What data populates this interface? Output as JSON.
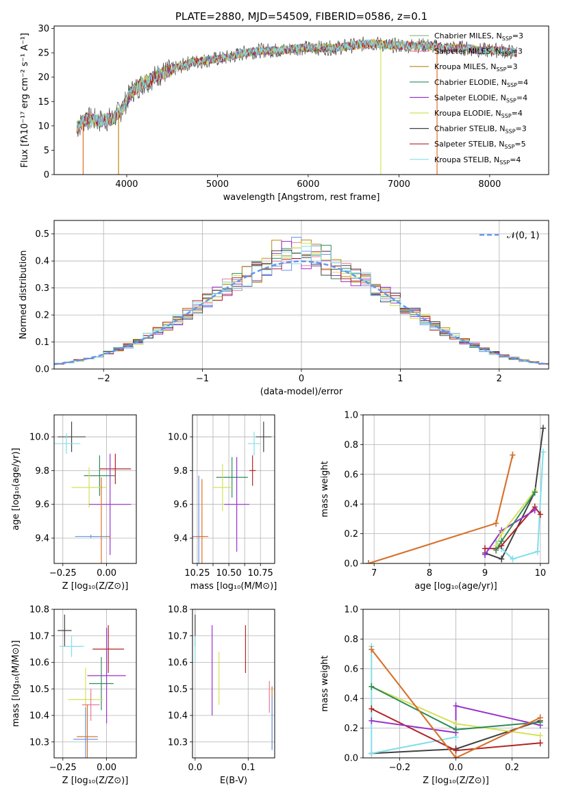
{
  "chart_data": [
    {
      "id": "spectrum",
      "type": "line",
      "title": "PLATE=2880, MJD=54509, FIBERID=0586, z=0.1",
      "xlabel": "wavelength [Angstrom, rest frame]",
      "ylabel": "Flux [fλ10⁻¹⁷ erg cm⁻² s⁻¹ A⁻¹]",
      "xlim": [
        3200,
        8650
      ],
      "ylim": [
        0,
        30.5
      ],
      "xticks": [
        4000,
        5000,
        6000,
        7000,
        8000
      ],
      "yticks": [
        0,
        5,
        10,
        15,
        20,
        25,
        30
      ],
      "grid": false,
      "legend_position": "upper right",
      "continuum_x": [
        3450,
        3550,
        3700,
        3850,
        3950,
        4050,
        4200,
        4350,
        4500,
        4700,
        4900,
        5100,
        5300,
        5500,
        5700,
        5900,
        6100,
        6300,
        6500,
        6700,
        6900,
        7100,
        7300,
        7500,
        7700,
        7900,
        8100,
        8300
      ],
      "continuum_y": [
        9.5,
        11.5,
        11,
        11.5,
        13.5,
        17,
        19,
        20.5,
        21.5,
        23,
        23.5,
        24,
        25,
        25.5,
        25.5,
        26,
        26,
        26,
        26.5,
        27,
        26.5,
        26.5,
        26.5,
        26,
        26,
        25.5,
        25.5,
        25
      ],
      "series": [
        {
          "name": "Chabrier MILES, N",
          "ssp": "=3",
          "color": "#8fbc8f"
        },
        {
          "name": "Salpeter MILES, N",
          "ssp": "=3",
          "color": "#e9799a"
        },
        {
          "name": "Kroupa MILES, N",
          "ssp": "=3",
          "color": "#b8860b"
        },
        {
          "name": "Chabrier ELODIE, N",
          "ssp": "=4",
          "color": "#2e8b57"
        },
        {
          "name": "Salpeter ELODIE, N",
          "ssp": "=4",
          "color": "#9932cc"
        },
        {
          "name": "Kroupa ELODIE, N",
          "ssp": "=4",
          "color": "#d4e157"
        },
        {
          "name": "Chabrier STELIB, N",
          "ssp": "=3",
          "color": "#404040"
        },
        {
          "name": "Salpeter STELIB, N",
          "ssp": "=5",
          "color": "#b22222"
        },
        {
          "name": "Kroupa STELIB, N",
          "ssp": "=4",
          "color": "#80deea"
        }
      ],
      "ssp_subscript": "SSP",
      "drops": [
        {
          "x": 3520,
          "color": "#e07020"
        },
        {
          "x": 3910,
          "color": "#b8860b"
        },
        {
          "x": 6800,
          "color": "#d4e157"
        },
        {
          "x": 7420,
          "color": "#e07020"
        }
      ]
    },
    {
      "id": "residuals",
      "type": "histogram",
      "xlabel": "(data-model)/error",
      "ylabel": "Normed distribution",
      "xlim": [
        -2.5,
        2.5
      ],
      "ylim": [
        0,
        0.55
      ],
      "xticks": [
        -2,
        -1,
        0,
        1,
        2
      ],
      "yticks": [
        0.0,
        0.1,
        0.2,
        0.3,
        0.4,
        0.5
      ],
      "grid": true,
      "bin_width": 0.1,
      "bin_start": -2.5,
      "gaussian_label": "𝒩(0, 1)",
      "gaussian_color": "#6495ed",
      "legend_position": "upper right",
      "hist_colors": [
        "#6495ed",
        "#e9799a",
        "#b8860b",
        "#2e8b57",
        "#9932cc",
        "#d4e157",
        "#404040",
        "#b22222",
        "#80deea"
      ]
    },
    {
      "id": "age_vs_Z",
      "type": "scatter",
      "xlabel": "Z [log₁₀(Z/Z⊙)]",
      "ylabel": "age  [log₁₀(age/yr)]",
      "xlim": [
        -0.3,
        0.17
      ],
      "ylim": [
        9.25,
        10.13
      ],
      "xticks": [
        -0.25,
        0.0
      ],
      "yticks": [
        9.4,
        9.6,
        9.8,
        10.0
      ],
      "grid": true,
      "points": [
        {
          "x": -0.2,
          "y": 10.0,
          "xerr": 0.08,
          "yerr": 0.09,
          "color": "#404040"
        },
        {
          "x": -0.23,
          "y": 9.96,
          "xerr": 0.08,
          "yerr": 0.06,
          "color": "#80deea"
        },
        {
          "x": 0.05,
          "y": 9.81,
          "xerr": 0.09,
          "yerr": 0.09,
          "color": "#b22222"
        },
        {
          "x": -0.04,
          "y": 9.77,
          "xerr": 0.09,
          "yerr": 0.12,
          "color": "#2e8b57"
        },
        {
          "x": -0.1,
          "y": 9.7,
          "xerr": 0.1,
          "yerr": 0.12,
          "color": "#d4e157"
        },
        {
          "x": 0.02,
          "y": 9.6,
          "xerr": 0.12,
          "yerr": 0.3,
          "color": "#9932cc"
        },
        {
          "x": -0.03,
          "y": 9.41,
          "xerr": 0.05,
          "yerr": 0.35,
          "color": "#e07020"
        },
        {
          "x": -0.09,
          "y": 9.41,
          "xerr": 0.09,
          "yerr": 0.01,
          "color": "#6495ed"
        }
      ]
    },
    {
      "id": "age_vs_mass",
      "type": "scatter",
      "xlabel": "mass [log₁₀(M/M⊙)]",
      "ylabel": "",
      "xlim": [
        10.27,
        10.79
      ],
      "ylim": [
        9.25,
        10.13
      ],
      "xticks": [
        10.3,
        10.4,
        10.5,
        10.6,
        10.7
      ],
      "xticklabels": [
        "10.25",
        "",
        "10.50",
        "",
        "10.75"
      ],
      "yticks": [
        9.4,
        9.6,
        9.8,
        10.0
      ],
      "grid": true,
      "points": [
        {
          "x": 10.72,
          "y": 10.0,
          "xerr": 0.05,
          "yerr": 0.09,
          "color": "#404040"
        },
        {
          "x": 10.66,
          "y": 9.96,
          "xerr": 0.04,
          "yerr": 0.07,
          "color": "#80deea"
        },
        {
          "x": 10.65,
          "y": 9.8,
          "xerr": 0.02,
          "yerr": 0.09,
          "color": "#b22222"
        },
        {
          "x": 10.52,
          "y": 9.76,
          "xerr": 0.1,
          "yerr": 0.12,
          "color": "#2e8b57"
        },
        {
          "x": 10.46,
          "y": 9.7,
          "xerr": 0.06,
          "yerr": 0.14,
          "color": "#d4e157"
        },
        {
          "x": 10.55,
          "y": 9.6,
          "xerr": 0.08,
          "yerr": 0.28,
          "color": "#9932cc"
        },
        {
          "x": 10.31,
          "y": 9.41,
          "xerr": 0.04,
          "yerr": 0.36,
          "color": "#6495ed"
        },
        {
          "x": 10.33,
          "y": 9.41,
          "xerr": 0.04,
          "yerr": 0.34,
          "color": "#e07020"
        }
      ]
    },
    {
      "id": "weight_vs_age",
      "type": "line",
      "xlabel": "age  [log₁₀(age/yr)]",
      "ylabel": "mass weight",
      "xlim": [
        6.8,
        10.15
      ],
      "ylim": [
        0,
        1.0
      ],
      "xticks": [
        7,
        8,
        9,
        10
      ],
      "yticks": [
        0.0,
        0.2,
        0.4,
        0.6,
        0.8,
        1.0
      ],
      "grid": true,
      "series": [
        {
          "color": "#404040",
          "x": [
            9.0,
            9.3,
            9.9,
            10.05
          ],
          "y": [
            0.07,
            0.03,
            0.48,
            0.91
          ]
        },
        {
          "color": "#80deea",
          "x": [
            9.2,
            9.3,
            9.5,
            9.95,
            10.05
          ],
          "y": [
            0.15,
            0.1,
            0.03,
            0.08,
            0.75
          ]
        },
        {
          "color": "#b22222",
          "x": [
            9.0,
            9.2,
            9.3,
            9.9,
            10.0
          ],
          "y": [
            0.1,
            0.1,
            0.12,
            0.38,
            0.33
          ]
        },
        {
          "color": "#9932cc",
          "x": [
            9.0,
            9.3,
            9.9
          ],
          "y": [
            0.06,
            0.22,
            0.36
          ]
        },
        {
          "color": "#d4e157",
          "x": [
            9.2,
            9.3,
            9.9
          ],
          "y": [
            0.12,
            0.2,
            0.49
          ]
        },
        {
          "color": "#2e8b57",
          "x": [
            9.2,
            9.3,
            9.9
          ],
          "y": [
            0.09,
            0.15,
            0.48
          ]
        },
        {
          "color": "#6495ed",
          "x": [
            6.9,
            9.2,
            9.5
          ],
          "y": [
            0.0,
            0.27,
            0.73
          ]
        },
        {
          "color": "#e07020",
          "x": [
            6.9,
            9.2,
            9.5
          ],
          "y": [
            0.0,
            0.27,
            0.73
          ]
        }
      ]
    },
    {
      "id": "mass_vs_Z",
      "type": "scatter",
      "xlabel": "Z [log₁₀(Z/Z⊙)]",
      "ylabel": "mass [log₁₀(M/M⊙)]",
      "xlim": [
        -0.3,
        0.17
      ],
      "ylim": [
        10.24,
        10.8
      ],
      "xticks": [
        -0.25,
        0.0
      ],
      "yticks": [
        10.3,
        10.4,
        10.5,
        10.6,
        10.7,
        10.8
      ],
      "grid": true,
      "points": [
        {
          "x": -0.24,
          "y": 10.72,
          "xerr": 0.04,
          "yerr": 0.06,
          "color": "#404040"
        },
        {
          "x": -0.2,
          "y": 10.66,
          "xerr": 0.07,
          "yerr": 0.04,
          "color": "#80deea"
        },
        {
          "x": 0.01,
          "y": 10.65,
          "xerr": 0.09,
          "yerr": 0.09,
          "color": "#b22222"
        },
        {
          "x": -0.03,
          "y": 10.52,
          "xerr": 0.07,
          "yerr": 0.1,
          "color": "#2e8b57"
        },
        {
          "x": 0.0,
          "y": 10.55,
          "xerr": 0.11,
          "yerr": 0.18,
          "color": "#9932cc"
        },
        {
          "x": -0.12,
          "y": 10.46,
          "xerr": 0.1,
          "yerr": 0.12,
          "color": "#d4e157"
        },
        {
          "x": -0.09,
          "y": 10.44,
          "xerr": 0.05,
          "yerr": 0.06,
          "color": "#e9799a"
        },
        {
          "x": -0.11,
          "y": 10.32,
          "xerr": 0.06,
          "yerr": 0.12,
          "color": "#e07020"
        },
        {
          "x": -0.12,
          "y": 10.31,
          "xerr": 0.07,
          "yerr": 0.12,
          "color": "#6495ed"
        }
      ]
    },
    {
      "id": "mass_vs_ebv",
      "type": "scatter",
      "xlabel": "E(B-V)",
      "ylabel": "",
      "xlim": [
        -0.005,
        0.15
      ],
      "ylim": [
        10.24,
        10.8
      ],
      "xticks": [
        0.0,
        0.1
      ],
      "yticks": [
        10.3,
        10.4,
        10.5,
        10.6,
        10.7,
        10.8
      ],
      "grid": true,
      "points": [
        {
          "x": 0.0,
          "y": 10.72,
          "xerr": 0.0,
          "yerr": 0.06,
          "color": "#404040"
        },
        {
          "x": 0.0,
          "y": 10.65,
          "xerr": 0.0,
          "yerr": 0.05,
          "color": "#80deea"
        },
        {
          "x": 0.032,
          "y": 10.57,
          "xerr": 0.0,
          "yerr": 0.17,
          "color": "#9932cc"
        },
        {
          "x": 0.045,
          "y": 10.54,
          "xerr": 0.0,
          "yerr": 0.1,
          "color": "#d4e157"
        },
        {
          "x": 0.095,
          "y": 10.65,
          "xerr": 0.0,
          "yerr": 0.09,
          "color": "#b22222"
        },
        {
          "x": 0.14,
          "y": 10.47,
          "xerr": 0.0,
          "yerr": 0.06,
          "color": "#e9799a"
        },
        {
          "x": 0.145,
          "y": 10.39,
          "xerr": 0.0,
          "yerr": 0.12,
          "color": "#e07020"
        },
        {
          "x": 0.145,
          "y": 10.37,
          "xerr": 0.0,
          "yerr": 0.1,
          "color": "#6495ed"
        }
      ]
    },
    {
      "id": "weight_vs_Z",
      "type": "line",
      "xlabel": "Z [log₁₀(Z/Z⊙)]",
      "ylabel": "mass weight",
      "xlim": [
        -0.33,
        0.33
      ],
      "ylim": [
        0,
        1.0
      ],
      "xticks": [
        -0.2,
        0.0,
        0.2
      ],
      "yticks": [
        0.0,
        0.2,
        0.4,
        0.6,
        0.8,
        1.0
      ],
      "grid": true,
      "series": [
        {
          "color": "#404040",
          "x": [
            -0.3,
            0.0,
            0.3
          ],
          "y": [
            0.03,
            0.06,
            0.25
          ]
        },
        {
          "color": "#80deea",
          "x": [
            -0.3,
            -0.3,
            0.0
          ],
          "y": [
            0.75,
            0.03,
            0.14
          ]
        },
        {
          "color": "#b22222",
          "x": [
            -0.3,
            0.0,
            0.3
          ],
          "y": [
            0.33,
            0.05,
            0.1
          ]
        },
        {
          "color": "#9932cc",
          "x": [
            -0.3,
            0.0,
            0.0,
            0.3
          ],
          "y": [
            0.25,
            0.17,
            0.35,
            0.22
          ]
        },
        {
          "color": "#d4e157",
          "x": [
            -0.3,
            0.0,
            0.3
          ],
          "y": [
            0.48,
            0.23,
            0.15
          ]
        },
        {
          "color": "#2e8b57",
          "x": [
            -0.3,
            0.0,
            0.3
          ],
          "y": [
            0.48,
            0.19,
            0.24
          ]
        },
        {
          "color": "#6495ed",
          "x": [
            -0.3,
            0.0,
            0.3
          ],
          "y": [
            0.73,
            0.0,
            0.27
          ]
        },
        {
          "color": "#e07020",
          "x": [
            -0.3,
            0.0,
            0.3
          ],
          "y": [
            0.73,
            0.0,
            0.27
          ]
        }
      ]
    }
  ]
}
